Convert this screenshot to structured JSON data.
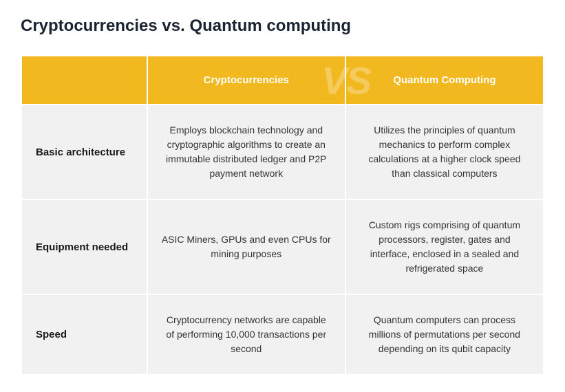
{
  "title": "Cryptocurrencies vs. Quantum computing",
  "watermark": "VS",
  "colors": {
    "header_bg": "#f2b81f",
    "header_text": "#ffffff",
    "cell_bg": "#f1f1f1",
    "title_color": "#1a2332",
    "body_text": "#333333"
  },
  "table": {
    "columns": [
      "Cryptocurrencies",
      "Quantum Computing"
    ],
    "rows": [
      {
        "label": "Basic architecture",
        "cells": [
          "Employs blockchain technology and cryptographic algorithms to create an immutable distributed ledger and P2P payment network",
          "Utilizes the principles of quantum mechanics to perform complex calculations at a higher clock speed than classical computers"
        ]
      },
      {
        "label": "Equipment needed",
        "cells": [
          "ASIC Miners, GPUs and even CPUs for mining purposes",
          "Custom rigs comprising of quantum processors, register, gates and interface, enclosed in a sealed and refrigerated space"
        ]
      },
      {
        "label": "Speed",
        "cells": [
          "Cryptocurrency networks are capable of performing 10,000 transactions per second",
          "Quantum computers can process millions of permutations per second depending on its qubit capacity"
        ]
      }
    ]
  }
}
